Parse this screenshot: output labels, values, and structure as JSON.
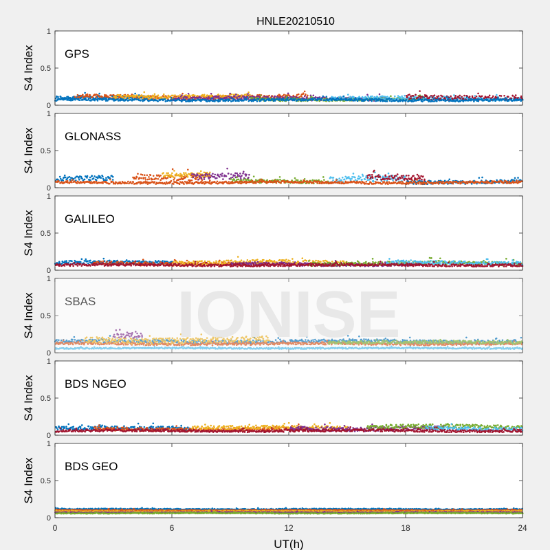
{
  "watermark": "IONISE",
  "colors": {
    "series": [
      "#0072BD",
      "#D95319",
      "#EDB120",
      "#7E2F8E",
      "#77AC30",
      "#4DBEEE",
      "#A2142F"
    ],
    "axes_bg": "#ffffff",
    "axis_line": "#262626",
    "watermark": "#e6e6e6"
  },
  "chart_data": {
    "type": "scatter",
    "title": "HNLE20210510",
    "xlabel": "UT(h)",
    "ylabel": "S4 Index",
    "xlim": [
      0,
      24
    ],
    "ylim": [
      0,
      1
    ],
    "xticks": [
      0,
      6,
      12,
      18,
      24
    ],
    "yticks": [
      0,
      0.5,
      1
    ],
    "grid": false,
    "panels": [
      {
        "label": "GPS",
        "tracks": [
          {
            "x0": 0,
            "x1": 5,
            "base": 0.1,
            "noise": 0.03
          },
          {
            "x0": 1,
            "x1": 13,
            "base": 0.11,
            "noise": 0.035
          },
          {
            "x0": 3,
            "x1": 10,
            "base": 0.12,
            "noise": 0.03
          },
          {
            "x0": 6,
            "x1": 17,
            "base": 0.09,
            "noise": 0.03
          },
          {
            "x0": 10,
            "x1": 19,
            "base": 0.08,
            "noise": 0.025
          },
          {
            "x0": 14,
            "x1": 24,
            "base": 0.09,
            "noise": 0.03
          },
          {
            "x0": 18,
            "x1": 24,
            "base": 0.11,
            "noise": 0.04
          },
          {
            "x0": 0,
            "x1": 24,
            "base": 0.07,
            "noise": 0.02
          }
        ]
      },
      {
        "label": "GLONASS",
        "tracks": [
          {
            "x0": 0,
            "x1": 3,
            "base": 0.12,
            "noise": 0.04
          },
          {
            "x0": 4,
            "x1": 8,
            "base": 0.15,
            "noise": 0.05
          },
          {
            "x0": 5.5,
            "x1": 8,
            "base": 0.18,
            "noise": 0.04
          },
          {
            "x0": 7,
            "x1": 10,
            "base": 0.14,
            "noise": 0.05
          },
          {
            "x0": 9,
            "x1": 14,
            "base": 0.09,
            "noise": 0.03
          },
          {
            "x0": 14,
            "x1": 18,
            "base": 0.11,
            "noise": 0.05
          },
          {
            "x0": 16,
            "x1": 19,
            "base": 0.13,
            "noise": 0.04
          },
          {
            "x0": 18,
            "x1": 24,
            "base": 0.08,
            "noise": 0.03
          },
          {
            "x0": 0,
            "x1": 24,
            "base": 0.07,
            "noise": 0.02
          }
        ]
      },
      {
        "label": "GALILEO",
        "tracks": [
          {
            "x0": 0,
            "x1": 6,
            "base": 0.1,
            "noise": 0.03
          },
          {
            "x0": 2,
            "x1": 11,
            "base": 0.09,
            "noise": 0.03
          },
          {
            "x0": 6,
            "x1": 15,
            "base": 0.1,
            "noise": 0.035
          },
          {
            "x0": 9,
            "x1": 19,
            "base": 0.08,
            "noise": 0.025
          },
          {
            "x0": 13,
            "x1": 24,
            "base": 0.09,
            "noise": 0.03
          },
          {
            "x0": 17,
            "x1": 24,
            "base": 0.1,
            "noise": 0.03
          },
          {
            "x0": 0,
            "x1": 24,
            "base": 0.07,
            "noise": 0.02
          }
        ]
      },
      {
        "label": "SBAS",
        "tracks": [
          {
            "x0": 0,
            "x1": 24,
            "base": 0.15,
            "noise": 0.03
          },
          {
            "x0": 0,
            "x1": 24,
            "base": 0.12,
            "noise": 0.02
          },
          {
            "x0": 1.5,
            "x1": 11,
            "base": 0.17,
            "noise": 0.05
          },
          {
            "x0": 3,
            "x1": 4.5,
            "base": 0.24,
            "noise": 0.04
          },
          {
            "x0": 14,
            "x1": 24,
            "base": 0.14,
            "noise": 0.025
          },
          {
            "x0": 0,
            "x1": 24,
            "base": 0.06,
            "noise": 0.01
          }
        ]
      },
      {
        "label": "BDS NGEO",
        "tracks": [
          {
            "x0": 0,
            "x1": 7,
            "base": 0.09,
            "noise": 0.03
          },
          {
            "x0": 2,
            "x1": 13,
            "base": 0.08,
            "noise": 0.03
          },
          {
            "x0": 7,
            "x1": 15,
            "base": 0.1,
            "noise": 0.03
          },
          {
            "x0": 12,
            "x1": 20,
            "base": 0.09,
            "noise": 0.035
          },
          {
            "x0": 16,
            "x1": 24,
            "base": 0.11,
            "noise": 0.035
          },
          {
            "x0": 19,
            "x1": 24,
            "base": 0.09,
            "noise": 0.03
          },
          {
            "x0": 0,
            "x1": 24,
            "base": 0.06,
            "noise": 0.02
          }
        ]
      },
      {
        "label": "BDS GEO",
        "tracks": [
          {
            "x0": 0,
            "x1": 24,
            "base": 0.115,
            "noise": 0.008
          },
          {
            "x0": 0,
            "x1": 24,
            "base": 0.1,
            "noise": 0.008
          },
          {
            "x0": 0,
            "x1": 24,
            "base": 0.085,
            "noise": 0.007
          },
          {
            "x0": 0,
            "x1": 24,
            "base": 0.07,
            "noise": 0.007
          },
          {
            "x0": 0,
            "x1": 24,
            "base": 0.06,
            "noise": 0.006
          }
        ]
      }
    ]
  }
}
